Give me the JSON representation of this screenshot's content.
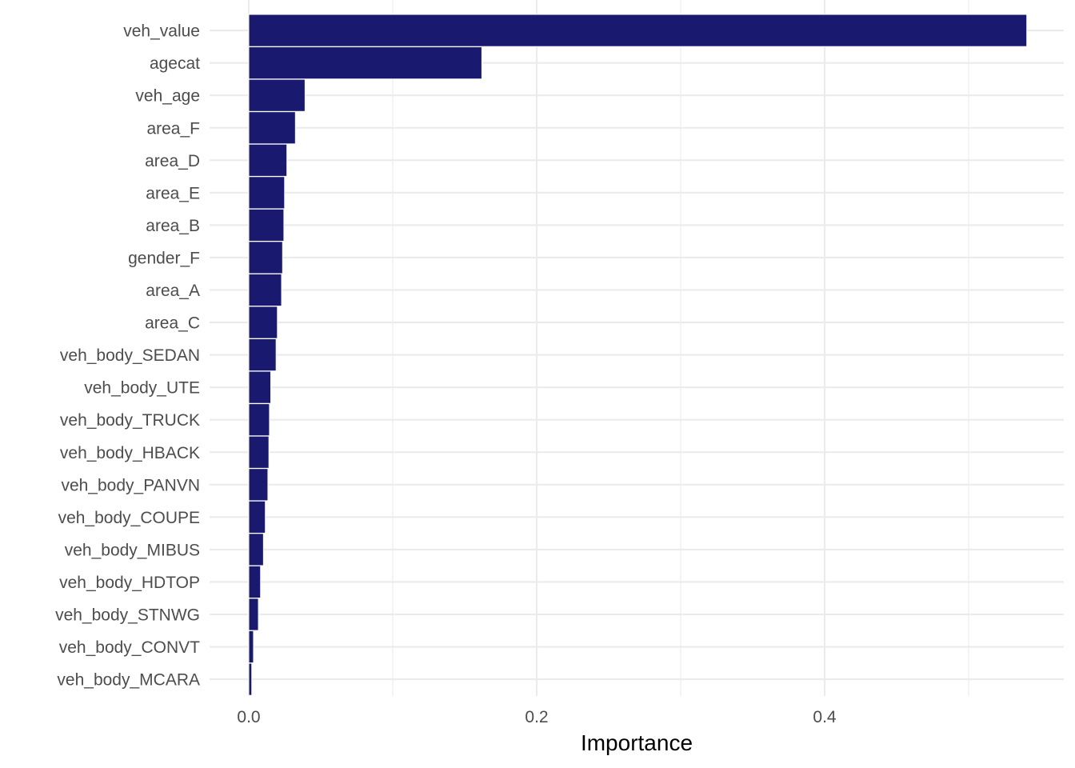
{
  "chart_data": {
    "type": "bar",
    "orientation": "horizontal",
    "xlabel": "Importance",
    "ylabel": "",
    "xlim": [
      -0.01,
      0.56
    ],
    "xticks": [
      0.0,
      0.2,
      0.4
    ],
    "xtick_labels": [
      "0.0",
      "0.2",
      "0.4"
    ],
    "grid": true,
    "bar_color": "#191970",
    "categories": [
      "veh_value",
      "agecat",
      "veh_age",
      "area_F",
      "area_D",
      "area_E",
      "area_B",
      "gender_F",
      "area_A",
      "area_C",
      "veh_body_SEDAN",
      "veh_body_UTE",
      "veh_body_TRUCK",
      "veh_body_HBACK",
      "veh_body_PANVN",
      "veh_body_COUPE",
      "veh_body_MIBUS",
      "veh_body_HDTOP",
      "veh_body_STNWG",
      "veh_body_CONVT",
      "veh_body_MCARA"
    ],
    "values": [
      0.5404,
      0.1619,
      0.0391,
      0.0324,
      0.0265,
      0.0249,
      0.0244,
      0.0235,
      0.0228,
      0.0199,
      0.019,
      0.0153,
      0.0144,
      0.014,
      0.0133,
      0.0115,
      0.0102,
      0.0082,
      0.0067,
      0.0033,
      0.0021
    ]
  }
}
